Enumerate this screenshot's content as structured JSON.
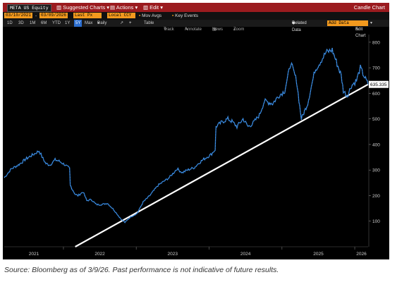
{
  "titlebar": {
    "ticker": "META US Equity",
    "menus": [
      "Suggested Charts",
      "Actions",
      "Edit"
    ],
    "title": "Candle Chart"
  },
  "controls": {
    "start_date": "03/10/2021",
    "end_date": "03/09/2026",
    "field": "Last Px",
    "currency": "Local CCY",
    "mov_avgs": "Mov Avgs",
    "key_events": "Key Events"
  },
  "periods": {
    "items": [
      "1D",
      "3D",
      "1M",
      "6M",
      "YTD",
      "1Y",
      "5Y",
      "Max"
    ],
    "selected": "5Y",
    "frequency": "Daily",
    "table": "Table"
  },
  "toolbar": {
    "track": "Track",
    "annotate": "Annotate",
    "news": "News",
    "zoom": "Zoom",
    "related_data": "Related Data",
    "add_data": "Add Data",
    "edit_chart": "Edit Chart"
  },
  "caption": "Source: Bloomberg as of 3/9/26. Past performance is not indicative of future results.",
  "colors": {
    "price": "#2d7fd6",
    "trendline": "#ffffff",
    "current_tag": "#ffffff"
  },
  "chart_data": {
    "type": "line",
    "ticker": "META US Equity",
    "ylim": [
      0,
      830
    ],
    "yticks": [
      100,
      200,
      300,
      400,
      500,
      600,
      700,
      800
    ],
    "xlim": [
      "2021-03-10",
      "2026-03-09"
    ],
    "xticks": [
      "2021",
      "2022",
      "2023",
      "2024",
      "2025",
      "2026"
    ],
    "last_value": "635.335",
    "series": [
      {
        "x": [
          "2021-03-10",
          "2021-04-15",
          "2021-05-20",
          "2021-06-30",
          "2021-08-01",
          "2021-09-01",
          "2021-09-20",
          "2021-10-05",
          "2021-10-25",
          "2021-11-20",
          "2021-12-10",
          "2022-01-10",
          "2022-02-01",
          "2022-02-04",
          "2022-03-01",
          "2022-03-15",
          "2022-04-10",
          "2022-04-28",
          "2022-05-20",
          "2022-06-15",
          "2022-07-10",
          "2022-08-10",
          "2022-09-10",
          "2022-10-15",
          "2022-11-05",
          "2022-12-01",
          "2023-01-05",
          "2023-02-05",
          "2023-03-10",
          "2023-04-20",
          "2023-06-15",
          "2023-07-25",
          "2023-08-20",
          "2023-09-15",
          "2023-10-20",
          "2023-11-15",
          "2023-12-10",
          "2024-01-10",
          "2024-02-01",
          "2024-02-05",
          "2024-03-10",
          "2024-04-05",
          "2024-04-25",
          "2024-05-20",
          "2024-06-20",
          "2024-07-15",
          "2024-08-05",
          "2024-09-10",
          "2024-10-05",
          "2024-11-15",
          "2024-12-15",
          "2025-01-15",
          "2025-02-14",
          "2025-03-15",
          "2025-04-08",
          "2025-05-10",
          "2025-06-15",
          "2025-07-10",
          "2025-08-10",
          "2025-09-10",
          "2025-10-25",
          "2025-11-05",
          "2025-11-25",
          "2025-12-15",
          "2026-01-10",
          "2026-01-29",
          "2026-02-15",
          "2026-03-09"
        ],
        "values": [
          270,
          305,
          320,
          345,
          360,
          375,
          345,
          325,
          320,
          340,
          335,
          320,
          305,
          240,
          205,
          200,
          215,
          180,
          185,
          165,
          165,
          170,
          145,
          110,
          95,
          115,
          130,
          175,
          200,
          240,
          270,
          305,
          290,
          300,
          310,
          330,
          345,
          360,
          380,
          470,
          490,
          500,
          490,
          470,
          500,
          470,
          480,
          515,
          570,
          560,
          590,
          610,
          720,
          650,
          500,
          560,
          690,
          720,
          760,
          770,
          670,
          610,
          590,
          630,
          650,
          700,
          670,
          635
        ]
      }
    ],
    "trendline": {
      "x": [
        "2022-03-01",
        "2026-03-09"
      ],
      "values": [
        0,
        635
      ]
    }
  }
}
